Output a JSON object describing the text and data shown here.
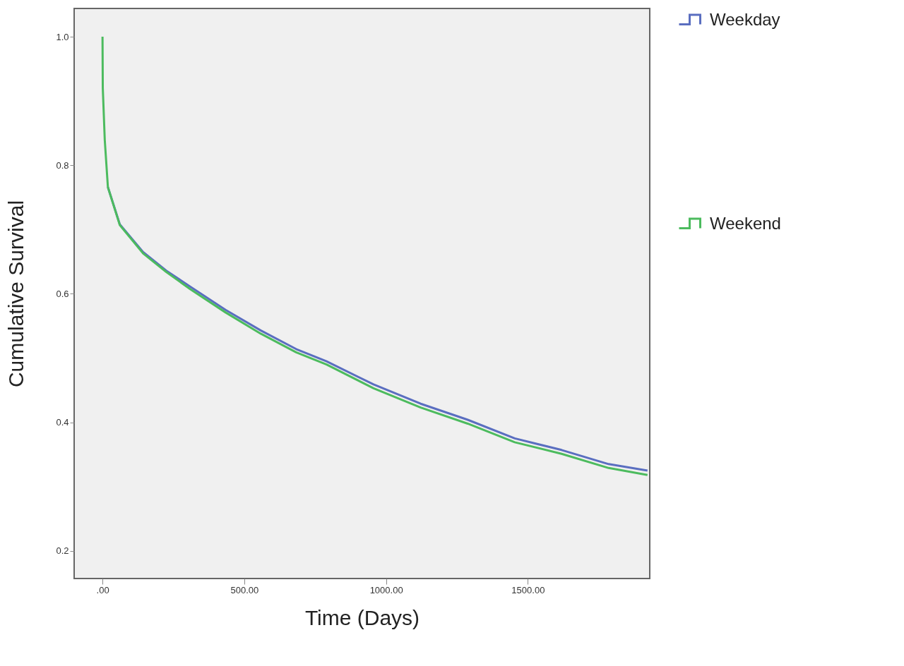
{
  "chart_data": {
    "type": "line",
    "xlabel": "Time (Days)",
    "ylabel": "Cumulative Survival",
    "x": [
      0,
      1,
      8,
      19,
      61,
      143,
      225,
      310,
      434,
      558,
      683,
      790,
      956,
      1122,
      1288,
      1454,
      1619,
      1785,
      1922
    ],
    "series": [
      {
        "name": "Weekday",
        "color": "#5a6ec0",
        "values": [
          null,
          null,
          null,
          0.766,
          0.708,
          0.665,
          0.636,
          0.611,
          0.575,
          0.543,
          0.514,
          0.495,
          0.459,
          0.429,
          0.404,
          0.375,
          0.357,
          0.335,
          0.325
        ]
      },
      {
        "name": "Weekend",
        "color": "#4cbb5e",
        "values": [
          1.0,
          0.92,
          0.839,
          0.766,
          0.707,
          0.663,
          0.634,
          0.607,
          0.571,
          0.538,
          0.509,
          0.49,
          0.453,
          0.423,
          0.398,
          0.369,
          0.351,
          0.329,
          0.318
        ]
      }
    ],
    "xlim": [
      -100,
      1930
    ],
    "ylim": [
      0.157,
      1.044
    ],
    "xticks": [
      {
        "value": 0,
        "label": ".00"
      },
      {
        "value": 500,
        "label": "500.00"
      },
      {
        "value": 1000,
        "label": "1000.00"
      },
      {
        "value": 1500,
        "label": "1500.00"
      }
    ],
    "yticks": [
      0.2,
      0.4,
      0.6,
      0.8,
      {
        "value": 1.0,
        "label": "1.0"
      }
    ],
    "grid": false,
    "legend": "right",
    "marker": "none",
    "line_style": "solid"
  }
}
